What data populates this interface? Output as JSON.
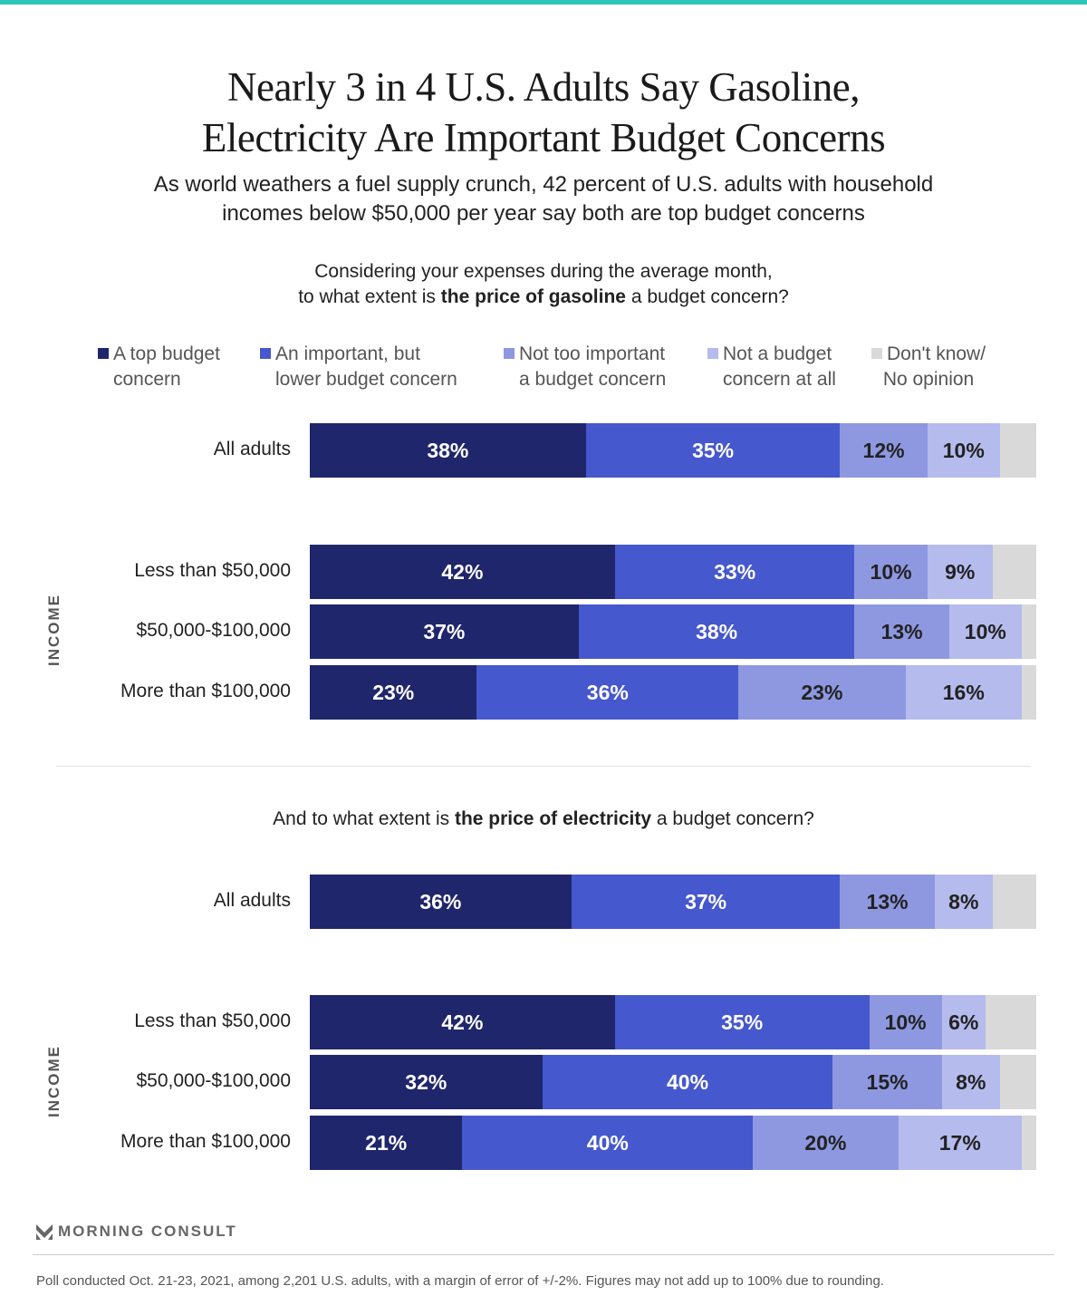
{
  "title": {
    "line1": "Nearly 3 in 4 U.S. Adults Say Gasoline,",
    "line2": "Electricity Are Important Budget Concerns"
  },
  "subtitle": {
    "line1": "As world weathers a fuel supply crunch, 42 percent of U.S. adults with household",
    "line2": "incomes below $50,000 per year say both are top budget concerns"
  },
  "colors": [
    "#1f266c",
    "#4658cd",
    "#8e98e1",
    "#b5bbec",
    "#d9d9d9"
  ],
  "legend": [
    {
      "line1": "A top budget",
      "line2": "concern"
    },
    {
      "line1": "An important, but",
      "line2": "lower budget concern"
    },
    {
      "line1": "Not too important",
      "line2": "a budget concern"
    },
    {
      "line1": "Not a budget",
      "line2": "concern at all"
    },
    {
      "line1": "Don't know/",
      "line2": "No opinion"
    }
  ],
  "group_label": "INCOME",
  "chart_data": [
    {
      "type": "bar",
      "orientation": "horizontal",
      "stacked": true,
      "question": {
        "pre1": "Considering your expenses during the average month,",
        "pre2": "to what extent is ",
        "bold": "the price of gasoline",
        "post": " a budget concern?"
      },
      "categories": [
        "All adults",
        "Less than $50,000",
        "$50,000-$100,000",
        "More than $100,000"
      ],
      "series": [
        {
          "name": "A top budget concern",
          "values": [
            38,
            42,
            37,
            23
          ]
        },
        {
          "name": "An important, but lower budget concern",
          "values": [
            35,
            33,
            38,
            36
          ]
        },
        {
          "name": "Not too important a budget concern",
          "values": [
            12,
            10,
            13,
            23
          ]
        },
        {
          "name": "Not a budget concern at all",
          "values": [
            10,
            9,
            10,
            16
          ]
        },
        {
          "name": "Don't know/ No opinion",
          "values": [
            5,
            6,
            2,
            2
          ]
        }
      ],
      "xlim": [
        0,
        100
      ]
    },
    {
      "type": "bar",
      "orientation": "horizontal",
      "stacked": true,
      "question": {
        "pre1": "",
        "pre2": "And to what extent is ",
        "bold": "the price of electricity",
        "post": " a budget concern?"
      },
      "categories": [
        "All adults",
        "Less than $50,000",
        "$50,000-$100,000",
        "More than $100,000"
      ],
      "series": [
        {
          "name": "A top budget concern",
          "values": [
            36,
            42,
            32,
            21
          ]
        },
        {
          "name": "An important, but lower budget concern",
          "values": [
            37,
            35,
            40,
            40
          ]
        },
        {
          "name": "Not too important a budget concern",
          "values": [
            13,
            10,
            15,
            20
          ]
        },
        {
          "name": "Not a budget concern at all",
          "values": [
            8,
            6,
            8,
            17
          ]
        },
        {
          "name": "Don't know/ No opinion",
          "values": [
            6,
            7,
            5,
            2
          ]
        }
      ],
      "xlim": [
        0,
        100
      ]
    }
  ],
  "brand": "MORNING CONSULT",
  "footnote": "Poll conducted Oct. 21-23, 2021, among 2,201 U.S. adults, with a margin of error of +/-2%. Figures may not add up to 100% due to rounding."
}
